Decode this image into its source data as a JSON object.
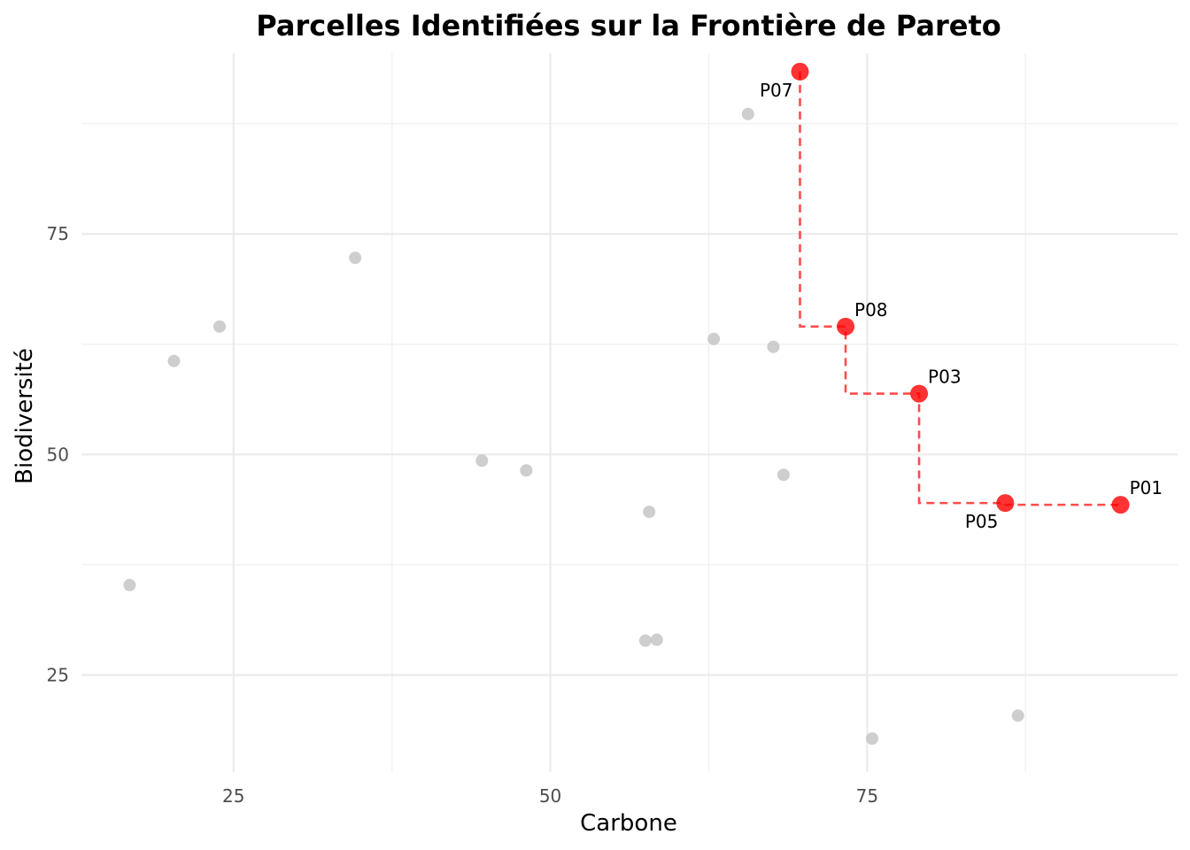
{
  "chart_data": {
    "type": "scatter",
    "title": "Parcelles Identifiées sur la Frontière de Pareto",
    "xlabel": "Carbone",
    "ylabel": "Biodiversité",
    "xlim": [
      13,
      99.5
    ],
    "ylim": [
      14,
      95.5
    ],
    "x_ticks": [
      25,
      50,
      75
    ],
    "y_ticks": [
      25,
      50,
      75
    ],
    "x_minor": [
      37.5,
      62.5,
      87.5
    ],
    "y_minor": [
      37.5,
      62.5,
      87.5
    ],
    "grid": true,
    "colors": {
      "other": "#bdbdbd",
      "pareto": "#ff0000",
      "frontier_line": "#ff0000"
    },
    "other_points": [
      {
        "x": 16.8,
        "y": 35.2
      },
      {
        "x": 20.3,
        "y": 60.6
      },
      {
        "x": 23.9,
        "y": 64.5
      },
      {
        "x": 34.6,
        "y": 72.3
      },
      {
        "x": 44.6,
        "y": 49.3
      },
      {
        "x": 48.1,
        "y": 48.2
      },
      {
        "x": 57.5,
        "y": 28.9
      },
      {
        "x": 58.4,
        "y": 29.0
      },
      {
        "x": 57.8,
        "y": 43.5
      },
      {
        "x": 62.9,
        "y": 63.1
      },
      {
        "x": 65.6,
        "y": 88.6
      },
      {
        "x": 67.6,
        "y": 62.2
      },
      {
        "x": 68.4,
        "y": 47.7
      },
      {
        "x": 75.4,
        "y": 17.8
      },
      {
        "x": 86.9,
        "y": 20.4
      }
    ],
    "pareto_points": [
      {
        "label": "P07",
        "x": 69.7,
        "y": 93.4,
        "label_pos": "below-left"
      },
      {
        "label": "P08",
        "x": 73.3,
        "y": 64.5,
        "label_pos": "above-right"
      },
      {
        "label": "P03",
        "x": 79.1,
        "y": 56.9,
        "label_pos": "above-right"
      },
      {
        "label": "P05",
        "x": 85.9,
        "y": 44.5,
        "label_pos": "below-left"
      },
      {
        "label": "P01",
        "x": 95.0,
        "y": 44.3,
        "label_pos": "above-right"
      }
    ]
  }
}
